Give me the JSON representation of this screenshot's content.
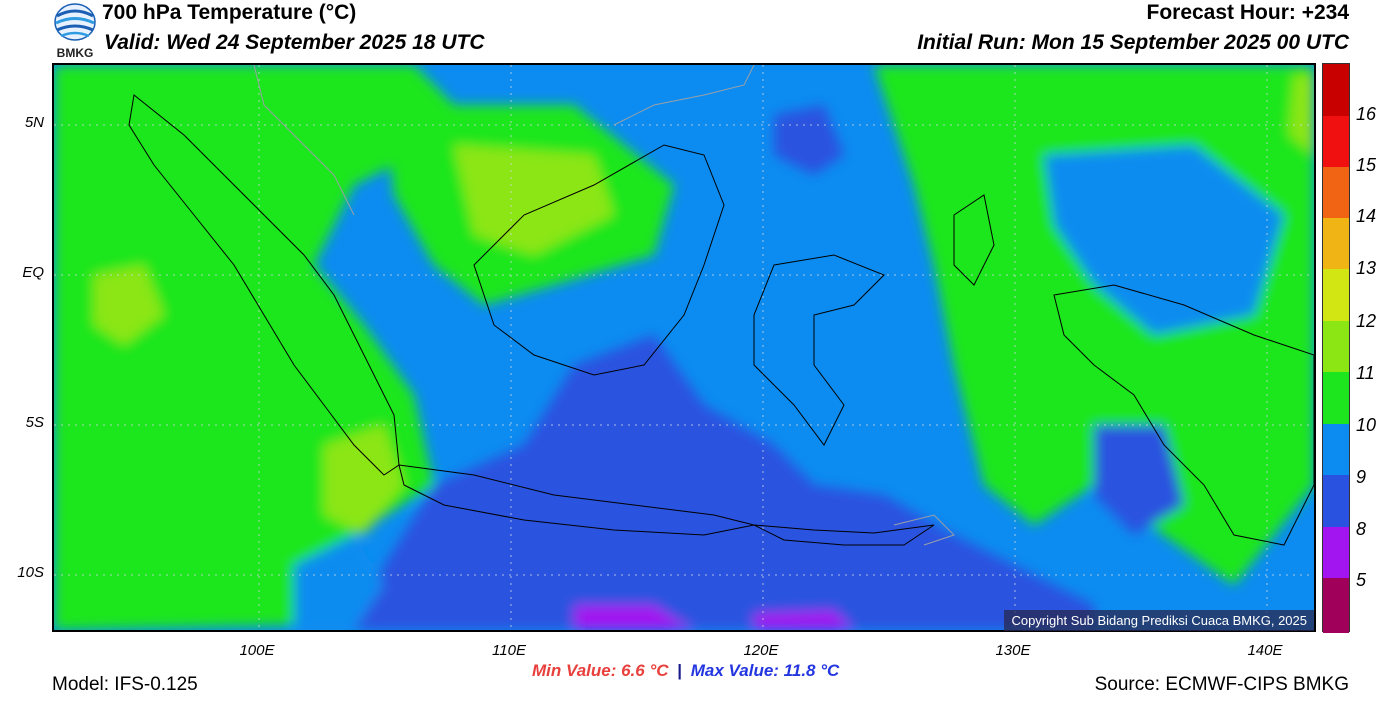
{
  "header": {
    "title": "700 hPa Temperature (°C)",
    "valid": "Valid: Wed 24 September 2025 18 UTC",
    "forecast_hour": "Forecast Hour: +234",
    "initial_run": "Initial Run: Mon 15 September 2025 00 UTC"
  },
  "logo": {
    "text": "BMKG",
    "icon": "bmkg-logo-icon"
  },
  "map": {
    "lat_labels": [
      "5N",
      "EQ",
      "5S",
      "10S"
    ],
    "lon_labels": [
      "100E",
      "110E",
      "120E",
      "130E",
      "140E"
    ],
    "copyright": "Copyright Sub Bidang Prediksi Cuaca BMKG, 2025",
    "colors": {
      "blue_dark": "#2a52e0",
      "blue": "#0c8cf0",
      "green": "#1ee61e",
      "lime": "#8ce614",
      "yellowgreen": "#bce414",
      "purple": "#a214f0"
    }
  },
  "colorbar": {
    "labels": [
      "16",
      "15",
      "14",
      "13",
      "12",
      "11",
      "10",
      "9",
      "8",
      "5"
    ],
    "colors": [
      "#c80000",
      "#f01010",
      "#f06414",
      "#f0b414",
      "#d2e614",
      "#8ce614",
      "#1ee61e",
      "#0c8cf0",
      "#2a52e0",
      "#a214f0",
      "#a0005a"
    ]
  },
  "footer": {
    "model": "Model: IFS-0.125",
    "min_value": "Min Value: 6.6 °C",
    "separator": "|",
    "max_value": "Max Value: 11.8 °C",
    "source": "Source: ECMWF-CIPS BMKG"
  }
}
